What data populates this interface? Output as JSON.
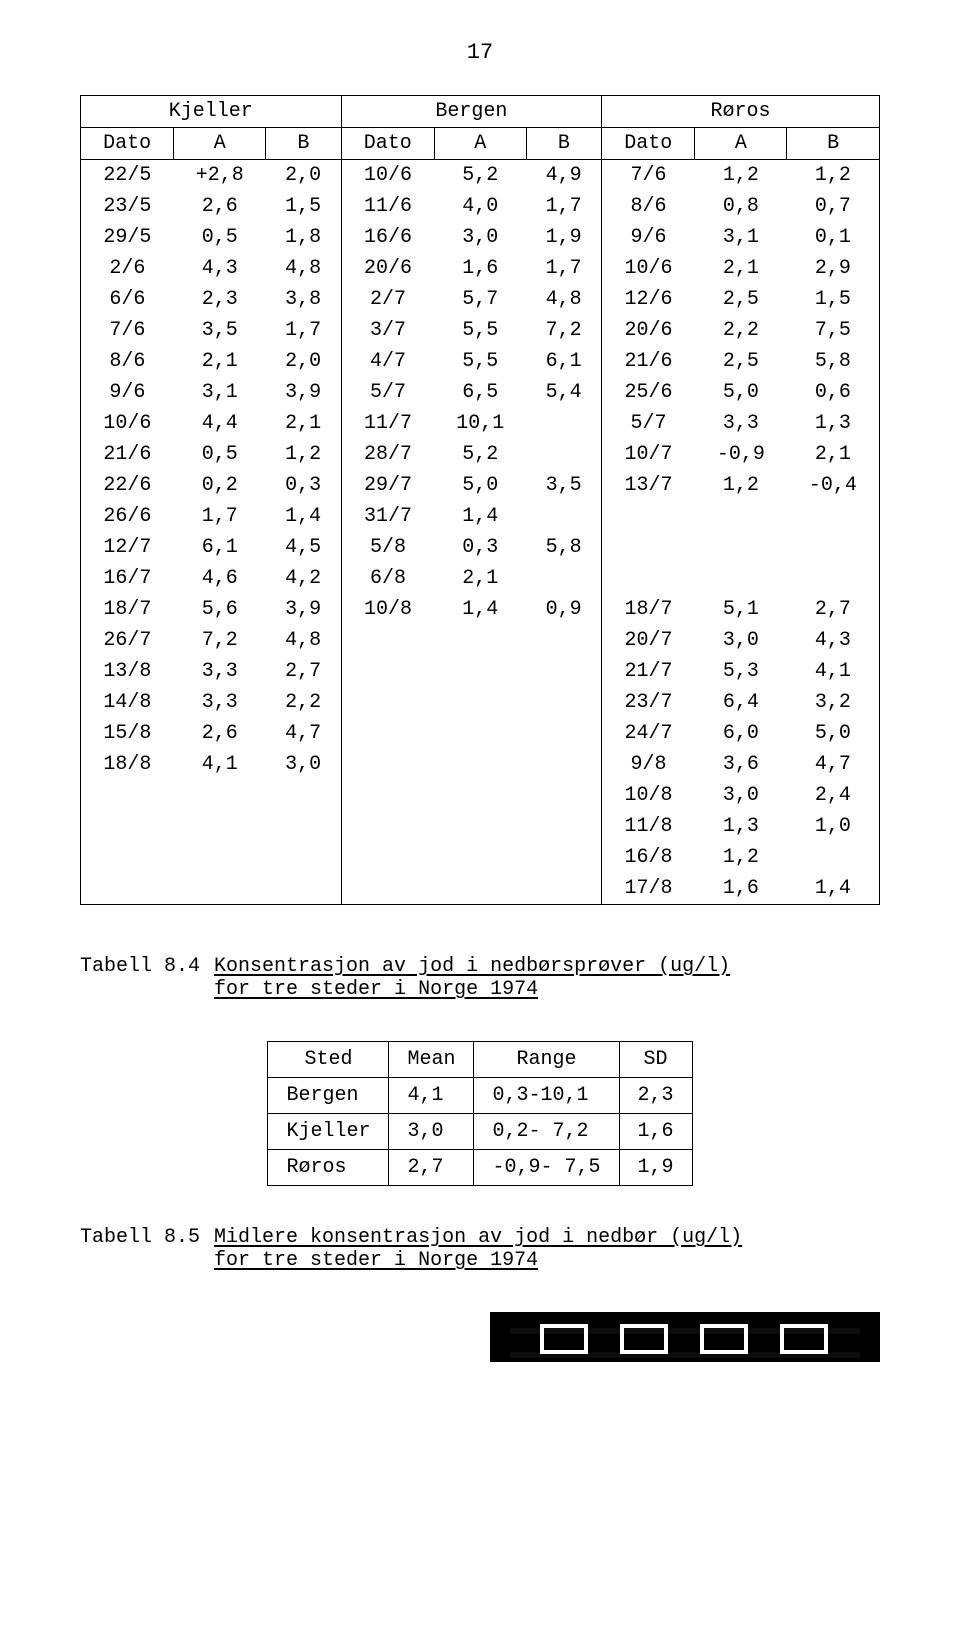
{
  "page_number": "17",
  "table1": {
    "groups": [
      "Kjeller",
      "Bergen",
      "Røros"
    ],
    "headers": [
      "Dato",
      "A",
      "B",
      "Dato",
      "A",
      "B",
      "Dato",
      "A",
      "B"
    ],
    "rows": [
      [
        "22/5",
        "+2,8",
        "2,0",
        "10/6",
        "5,2",
        "4,9",
        "7/6",
        "1,2",
        "1,2"
      ],
      [
        "23/5",
        "2,6",
        "1,5",
        "11/6",
        "4,0",
        "1,7",
        "8/6",
        "0,8",
        "0,7"
      ],
      [
        "29/5",
        "0,5",
        "1,8",
        "16/6",
        "3,0",
        "1,9",
        "9/6",
        "3,1",
        "0,1"
      ],
      [
        "2/6",
        "4,3",
        "4,8",
        "20/6",
        "1,6",
        "1,7",
        "10/6",
        "2,1",
        "2,9"
      ],
      [
        "6/6",
        "2,3",
        "3,8",
        "2/7",
        "5,7",
        "4,8",
        "12/6",
        "2,5",
        "1,5"
      ],
      [
        "7/6",
        "3,5",
        "1,7",
        "3/7",
        "5,5",
        "7,2",
        "20/6",
        "2,2",
        "7,5"
      ],
      [
        "8/6",
        "2,1",
        "2,0",
        "4/7",
        "5,5",
        "6,1",
        "21/6",
        "2,5",
        "5,8"
      ],
      [
        "9/6",
        "3,1",
        "3,9",
        "5/7",
        "6,5",
        "5,4",
        "25/6",
        "5,0",
        "0,6"
      ],
      [
        "10/6",
        "4,4",
        "2,1",
        "11/7",
        "10,1",
        "",
        "5/7",
        "3,3",
        "1,3"
      ],
      [
        "21/6",
        "0,5",
        "1,2",
        "28/7",
        "5,2",
        "",
        "10/7",
        "-0,9",
        "2,1"
      ],
      [
        "22/6",
        "0,2",
        "0,3",
        "29/7",
        "5,0",
        "3,5",
        "13/7",
        "1,2",
        "-0,4"
      ],
      [
        "26/6",
        "1,7",
        "1,4",
        "31/7",
        "1,4",
        "",
        "",
        "",
        ""
      ],
      [
        "12/7",
        "6,1",
        "4,5",
        "5/8",
        "0,3",
        "5,8",
        "",
        "",
        ""
      ],
      [
        "16/7",
        "4,6",
        "4,2",
        "6/8",
        "2,1",
        "",
        "",
        "",
        ""
      ],
      [
        "18/7",
        "5,6",
        "3,9",
        "10/8",
        "1,4",
        "0,9",
        "18/7",
        "5,1",
        "2,7"
      ],
      [
        "26/7",
        "7,2",
        "4,8",
        "",
        "",
        "",
        "20/7",
        "3,0",
        "4,3"
      ],
      [
        "13/8",
        "3,3",
        "2,7",
        "",
        "",
        "",
        "21/7",
        "5,3",
        "4,1"
      ],
      [
        "14/8",
        "3,3",
        "2,2",
        "",
        "",
        "",
        "23/7",
        "6,4",
        "3,2"
      ],
      [
        "15/8",
        "2,6",
        "4,7",
        "",
        "",
        "",
        "24/7",
        "6,0",
        "5,0"
      ],
      [
        "18/8",
        "4,1",
        "3,0",
        "",
        "",
        "",
        "9/8",
        "3,6",
        "4,7"
      ],
      [
        "",
        "",
        "",
        "",
        "",
        "",
        "10/8",
        "3,0",
        "2,4"
      ],
      [
        "",
        "",
        "",
        "",
        "",
        "",
        "11/8",
        "1,3",
        "1,0"
      ],
      [
        "",
        "",
        "",
        "",
        "",
        "",
        "16/8",
        "1,2",
        ""
      ],
      [
        "",
        "",
        "",
        "",
        "",
        "",
        "17/8",
        "1,6",
        "1,4"
      ]
    ]
  },
  "caption1": {
    "label": "Tabell 8.4",
    "line1": "Konsentrasjon av jod i nedbørsprøver (ug/l)",
    "line2": "for tre steder i Norge 1974"
  },
  "table2": {
    "headers": [
      "Sted",
      "Mean",
      "Range",
      "SD"
    ],
    "rows": [
      [
        "Bergen",
        "4,1",
        "0,3-10,1",
        "2,3"
      ],
      [
        "Kjeller",
        "3,0",
        "0,2- 7,2",
        "1,6"
      ],
      [
        "Røros",
        "2,7",
        "-0,9- 7,5",
        "1,9"
      ]
    ]
  },
  "caption2": {
    "label": "Tabell 8.5",
    "line1": "Midlere konsentrasjon av jod i nedbør (ug/l)",
    "line2": "for tre steder i Norge 1974"
  }
}
